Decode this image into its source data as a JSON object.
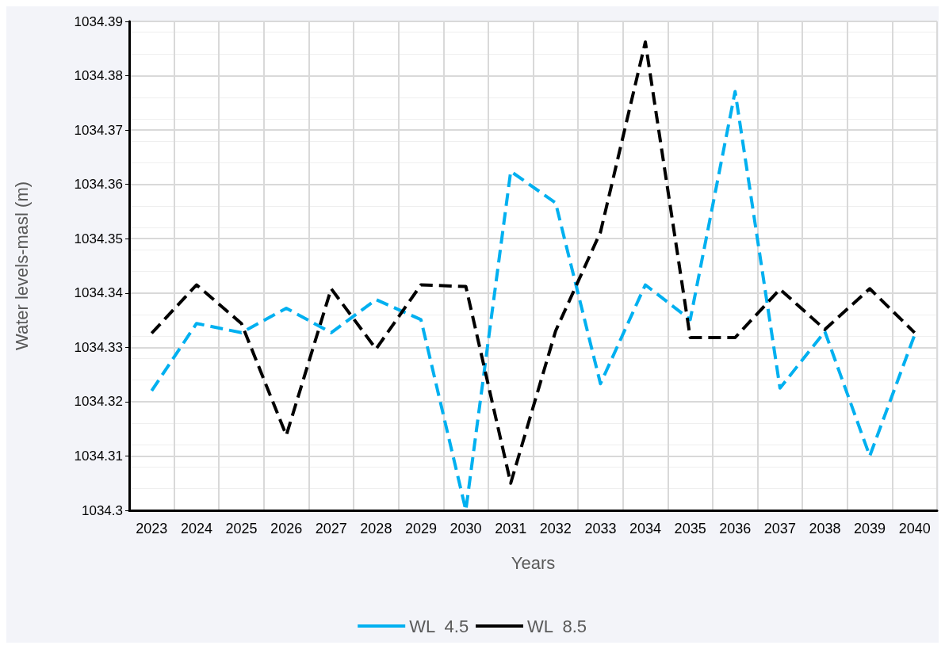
{
  "chart_data": {
    "type": "line",
    "xlabel": "Years",
    "ylabel": "Water levels-masl (m)",
    "categories": [
      "2023",
      "2024",
      "2025",
      "2026",
      "2027",
      "2028",
      "2029",
      "2030",
      "2031",
      "2032",
      "2033",
      "2034",
      "2035",
      "2036",
      "2037",
      "2038",
      "2039",
      "2040"
    ],
    "series": [
      {
        "name": "WL  4.5",
        "color": "#00b0f0",
        "values": [
          1034.322,
          1034.3344,
          1034.3327,
          1034.3372,
          1034.3327,
          1034.3388,
          1034.3351,
          1034.3,
          1034.3624,
          1034.3566,
          1034.3233,
          1034.3415,
          1034.3351,
          1034.3771,
          1034.3225,
          1034.3329,
          1034.31,
          1034.3323
        ]
      },
      {
        "name": "WL  8.5",
        "color": "#000000",
        "values": [
          1034.3326,
          1034.3415,
          1034.3344,
          1034.3138,
          1034.3408,
          1034.3297,
          1034.3415,
          1034.3412,
          1034.305,
          1034.333,
          1034.3512,
          1034.3862,
          1034.3318,
          1034.3318,
          1034.3407,
          1034.3333,
          1034.3408,
          1034.3327
        ]
      }
    ],
    "ylim": [
      1034.3,
      1034.39
    ],
    "yticks": [
      1034.3,
      1034.31,
      1034.32,
      1034.33,
      1034.34,
      1034.35,
      1034.36,
      1034.37,
      1034.38,
      1034.39
    ],
    "grid": true,
    "legend": "bottom",
    "line_style": "dashed",
    "marker": "none"
  }
}
